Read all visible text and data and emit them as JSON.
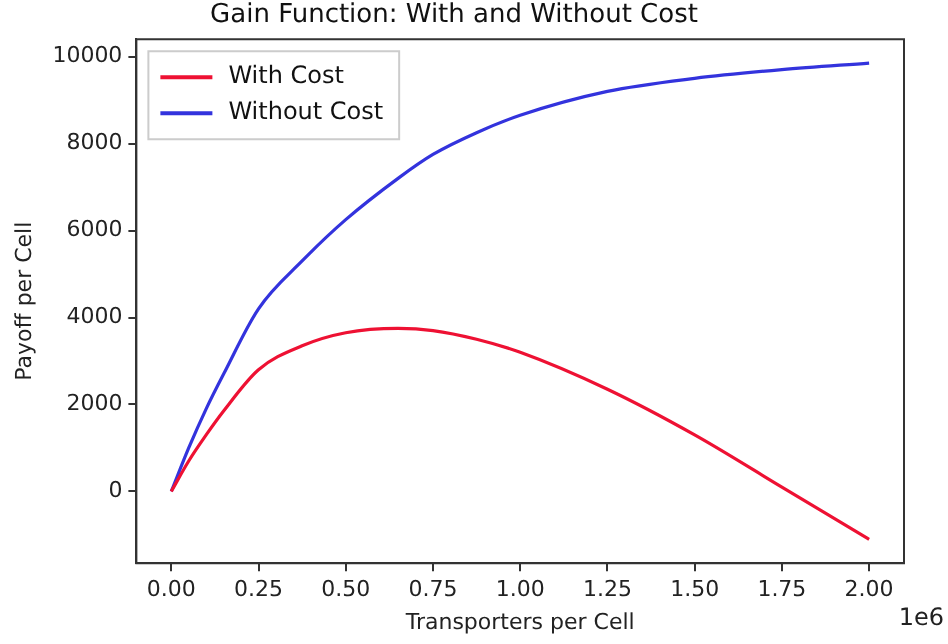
{
  "chart_data": {
    "type": "line",
    "title": "Gain Function: With and Without Cost",
    "xlabel": "Transporters per Cell",
    "ylabel": "Payoff per Cell",
    "annotations": [
      "1e6"
    ],
    "xlim": [
      -0.1,
      2.1
    ],
    "ylim": [
      -1650,
      10400
    ],
    "xticks": [
      {
        "value": 0,
        "label": "0.00"
      },
      0.25,
      {
        "value": 0.5,
        "label": "0.50"
      },
      0.75,
      {
        "value": 1,
        "label": "1.00"
      },
      1.25,
      {
        "value": 1.5,
        "label": "1.50"
      },
      1.75,
      {
        "value": 2,
        "label": "2.00"
      }
    ],
    "yticks": [
      0,
      2000,
      4000,
      6000,
      8000,
      10000
    ],
    "x": [
      0,
      0.05,
      0.1,
      0.15,
      0.25,
      0.375,
      0.5,
      0.65,
      0.75,
      0.875,
      1,
      1.25,
      1.5,
      1.75,
      2
    ],
    "series": [
      {
        "name": "With Cost",
        "color": "#ee1133",
        "values": [
          0,
          700,
          1300,
          1850,
          2800,
          3350,
          3650,
          3750,
          3700,
          3500,
          3200,
          2350,
          1300,
          100,
          -1100
        ]
      },
      {
        "name": "Without Cost",
        "color": "#3333dd",
        "values": [
          0,
          1000,
          1900,
          2700,
          4200,
          5300,
          6250,
          7200,
          7750,
          8250,
          8650,
          9200,
          9500,
          9700,
          9850
        ]
      }
    ],
    "grid": false,
    "legend": "top left",
    "marker": "none",
    "line_style": "solid"
  }
}
